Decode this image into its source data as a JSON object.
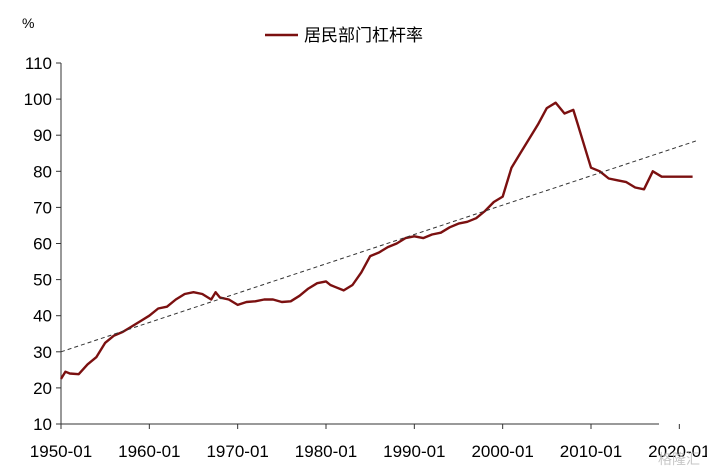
{
  "chart_data": {
    "type": "line",
    "title": "",
    "ylabel": "%",
    "xlabel": "",
    "ylim": [
      10,
      110
    ],
    "xlim": [
      1950.0,
      2022.0
    ],
    "y_ticks": [
      10,
      20,
      30,
      40,
      50,
      60,
      70,
      80,
      90,
      100,
      110
    ],
    "x_tick_labels": [
      "1950-01",
      "1960-01",
      "1970-01",
      "1980-01",
      "1990-01",
      "2000-01",
      "2010-01",
      "2020-01"
    ],
    "x_tick_years": [
      1950,
      1960,
      1970,
      1980,
      1990,
      2000,
      2010,
      2020
    ],
    "legend": {
      "placement": "top-center"
    },
    "grid": false,
    "series": [
      {
        "name": "居民部门杠杆率",
        "color": "#7b1010",
        "style": "solid",
        "x": [
          1950.0,
          1950.5,
          1951.0,
          1952.0,
          1953.0,
          1954.0,
          1955.0,
          1956.0,
          1957.0,
          1958.0,
          1959.0,
          1960.0,
          1961.0,
          1962.0,
          1963.0,
          1964.0,
          1965.0,
          1966.0,
          1967.0,
          1967.5,
          1968.0,
          1969.0,
          1970.0,
          1971.0,
          1972.0,
          1973.0,
          1974.0,
          1975.0,
          1976.0,
          1977.0,
          1978.0,
          1979.0,
          1980.0,
          1980.5,
          1981.0,
          1982.0,
          1983.0,
          1984.0,
          1985.0,
          1986.0,
          1987.0,
          1988.0,
          1989.0,
          1990.0,
          1991.0,
          1992.0,
          1993.0,
          1994.0,
          1995.0,
          1996.0,
          1997.0,
          1998.0,
          1999.0,
          2000.0,
          2001.0,
          2002.0,
          2003.0,
          2004.0,
          2005.0,
          2006.0,
          2007.0,
          2008.0,
          2008.5,
          2009.0,
          2009.5,
          2010.0,
          2011.0,
          2012.0,
          2013.0,
          2014.0,
          2015.0,
          2016.0,
          2017.0,
          2018.0,
          2019.0,
          2020.0,
          2020.5,
          2021.0,
          2021.5
        ],
        "values": [
          22.5,
          24.5,
          24.0,
          23.8,
          26.5,
          28.5,
          32.5,
          34.5,
          35.5,
          37.0,
          38.5,
          40.0,
          42.0,
          42.5,
          44.5,
          46.0,
          46.5,
          46.0,
          44.5,
          46.5,
          45.0,
          44.5,
          43.0,
          43.8,
          44.0,
          44.5,
          44.5,
          43.8,
          44.0,
          45.5,
          47.5,
          49.0,
          49.5,
          48.5,
          48.0,
          47.0,
          48.5,
          52.0,
          56.5,
          57.5,
          59.0,
          60.0,
          61.5,
          62.0,
          61.5,
          62.5,
          63.0,
          64.5,
          65.5,
          66.0,
          67.0,
          69.0,
          71.5,
          73.0,
          81.0,
          85.0,
          89.0,
          93.0,
          97.5,
          99.0,
          96.0,
          97.0,
          93.0,
          89.0,
          85.0,
          81.0,
          80.0,
          78.0,
          77.5,
          77.0,
          75.5,
          75.0,
          80.0,
          78.5,
          78.5,
          78.5,
          78.5,
          78.5,
          78.5
        ]
      },
      {
        "name": "",
        "color": "#333333",
        "style": "dashed",
        "x": [
          1950.0,
          2022.0
        ],
        "values": [
          30.0,
          88.5
        ]
      }
    ]
  },
  "watermark": "格隆汇"
}
